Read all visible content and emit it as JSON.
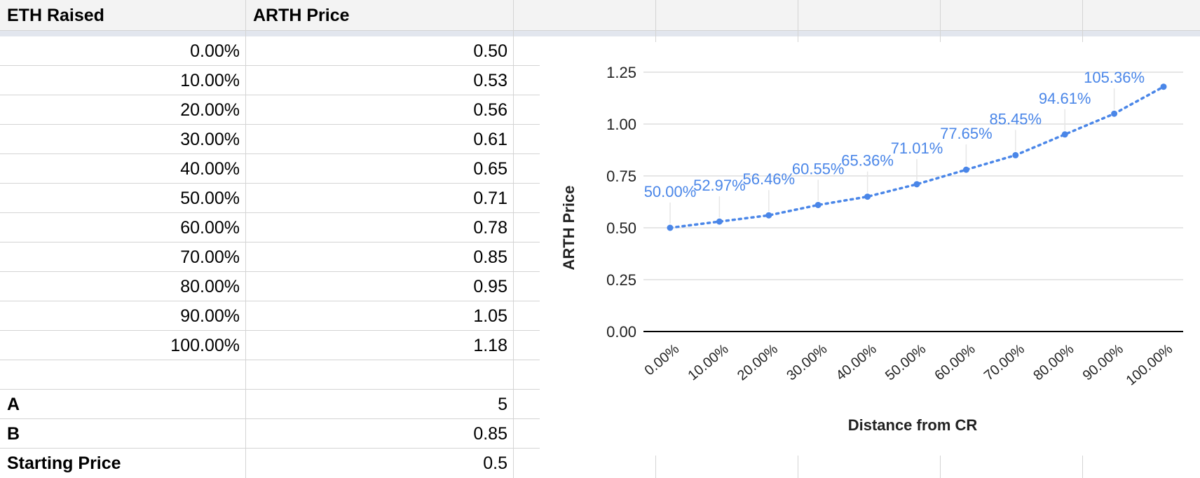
{
  "sheet": {
    "headers": [
      "ETH Raised",
      "ARTH Price"
    ],
    "rows": [
      [
        "0.00%",
        "0.50"
      ],
      [
        "10.00%",
        "0.53"
      ],
      [
        "20.00%",
        "0.56"
      ],
      [
        "30.00%",
        "0.61"
      ],
      [
        "40.00%",
        "0.65"
      ],
      [
        "50.00%",
        "0.71"
      ],
      [
        "60.00%",
        "0.78"
      ],
      [
        "70.00%",
        "0.85"
      ],
      [
        "80.00%",
        "0.95"
      ],
      [
        "90.00%",
        "1.05"
      ],
      [
        "100.00%",
        "1.18"
      ]
    ],
    "params": [
      {
        "label": "A",
        "value": "5"
      },
      {
        "label": "B",
        "value": "0.85"
      },
      {
        "label": "Starting Price",
        "value": "0.5"
      }
    ]
  },
  "chart_data": {
    "type": "scatter",
    "trendline": "dotted",
    "xlabel": "Distance from CR",
    "ylabel": "ARTH Price",
    "categories": [
      "0.00%",
      "10.00%",
      "20.00%",
      "30.00%",
      "40.00%",
      "50.00%",
      "60.00%",
      "70.00%",
      "80.00%",
      "90.00%",
      "100.00%"
    ],
    "values": [
      0.5,
      0.53,
      0.56,
      0.61,
      0.65,
      0.71,
      0.78,
      0.85,
      0.95,
      1.05,
      1.18
    ],
    "data_labels": [
      "50.00%",
      "52.97%",
      "56.46%",
      "60.55%",
      "65.36%",
      "71.01%",
      "77.65%",
      "85.45%",
      "94.61%",
      "105.36%",
      ""
    ],
    "yticks": [
      "0.00",
      "0.25",
      "0.50",
      "0.75",
      "1.00",
      "1.25"
    ],
    "ylim": [
      0,
      1.25
    ],
    "grid": true,
    "colors": {
      "series": "#4a86e8",
      "grid": "#cccccc",
      "axis": "#000000",
      "label_line": "#e6e6e6"
    }
  }
}
